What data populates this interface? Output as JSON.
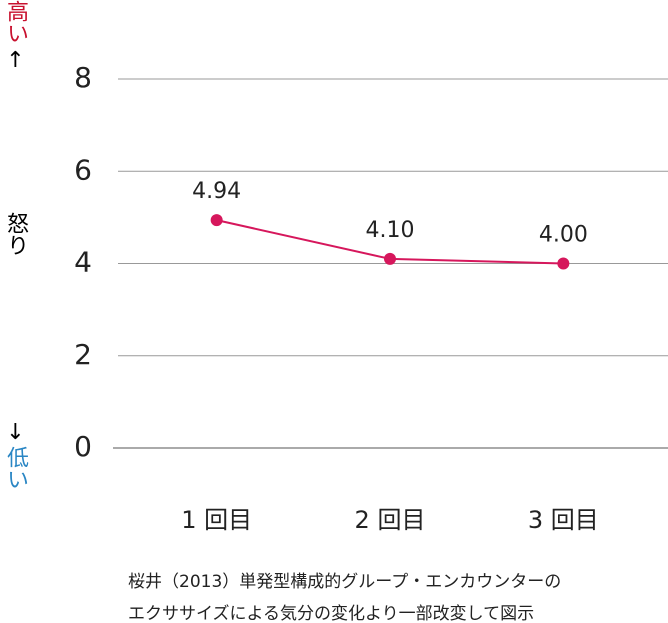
{
  "chart_data": {
    "type": "line",
    "categories": [
      "1 回目",
      "2 回目",
      "3 回目"
    ],
    "series": [
      {
        "name": "怒り",
        "color": "#d6175c",
        "values": [
          4.94,
          4.1,
          4.0
        ],
        "value_labels": [
          "4.94",
          "4.10",
          "4.00"
        ]
      }
    ],
    "ylim": [
      0,
      8
    ],
    "yticks": [
      0,
      2,
      4,
      6,
      8
    ],
    "grid": true,
    "y_label": "怒り",
    "high_label": "高い",
    "high_arrow": "↑",
    "low_arrow": "↓",
    "low_label": "低い",
    "high_color": "#c8102e",
    "low_color": "#2a86c4",
    "source": [
      "桜井（2013）単発型構成的グループ・エンカウンターの",
      "エクササイズによる気分の変化より一部改変して図示"
    ]
  }
}
